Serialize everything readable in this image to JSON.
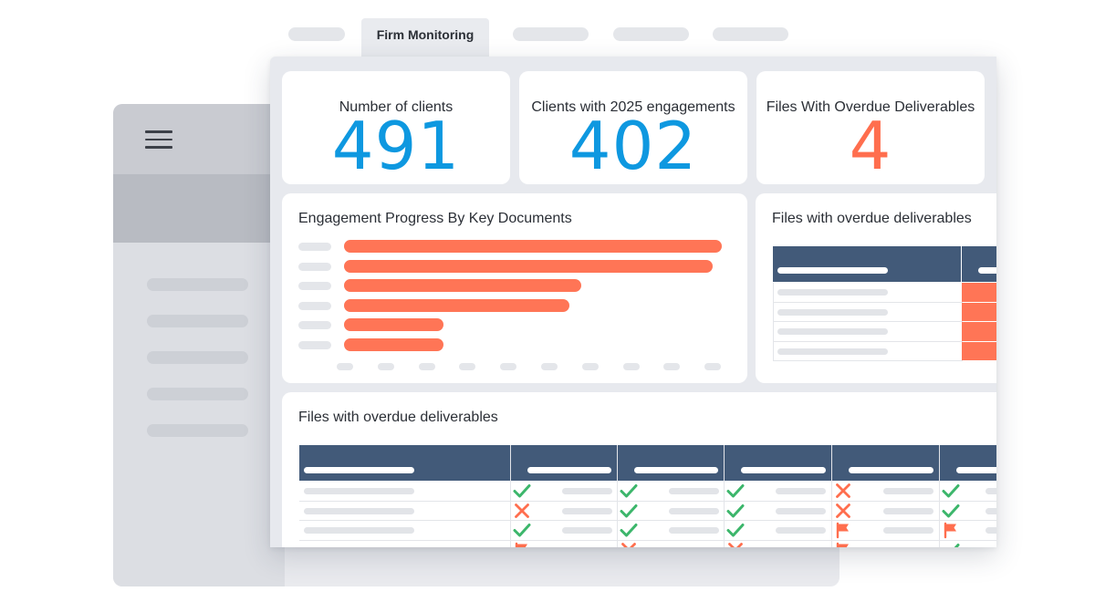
{
  "tabs": {
    "active_label": "Firm Monitoring"
  },
  "kpis": [
    {
      "label": "Number of clients",
      "value": "491",
      "color": "#0e98e0"
    },
    {
      "label": "Clients with 2025 engagements",
      "value": "402",
      "color": "#0e98e0"
    },
    {
      "label": "Files With Overdue Deliverables",
      "value": "4",
      "color": "#ff6e4e"
    }
  ],
  "chart": {
    "title": "Engagement Progress By Key Documents",
    "bar_color": "#ff7556"
  },
  "chart_data": {
    "type": "bar",
    "orientation": "horizontal",
    "title": "Engagement Progress By Key Documents",
    "categories": [
      "",
      "",
      "",
      "",
      "",
      ""
    ],
    "values": [
      100,
      97.5,
      62.8,
      59.7,
      26.3,
      26.3
    ],
    "xlim": [
      0,
      100
    ]
  },
  "overdue_small": {
    "title": "Files with overdue deliverables"
  },
  "overdue_table": {
    "title": "Files with overdue deliverables",
    "rows": [
      [
        "check",
        "check",
        "check",
        "cross",
        "check"
      ],
      [
        "cross",
        "check",
        "check",
        "cross",
        "check"
      ],
      [
        "check",
        "check",
        "check",
        "flag",
        "flag"
      ],
      [
        "flag",
        "cross",
        "cross",
        "flag",
        "check"
      ]
    ]
  }
}
